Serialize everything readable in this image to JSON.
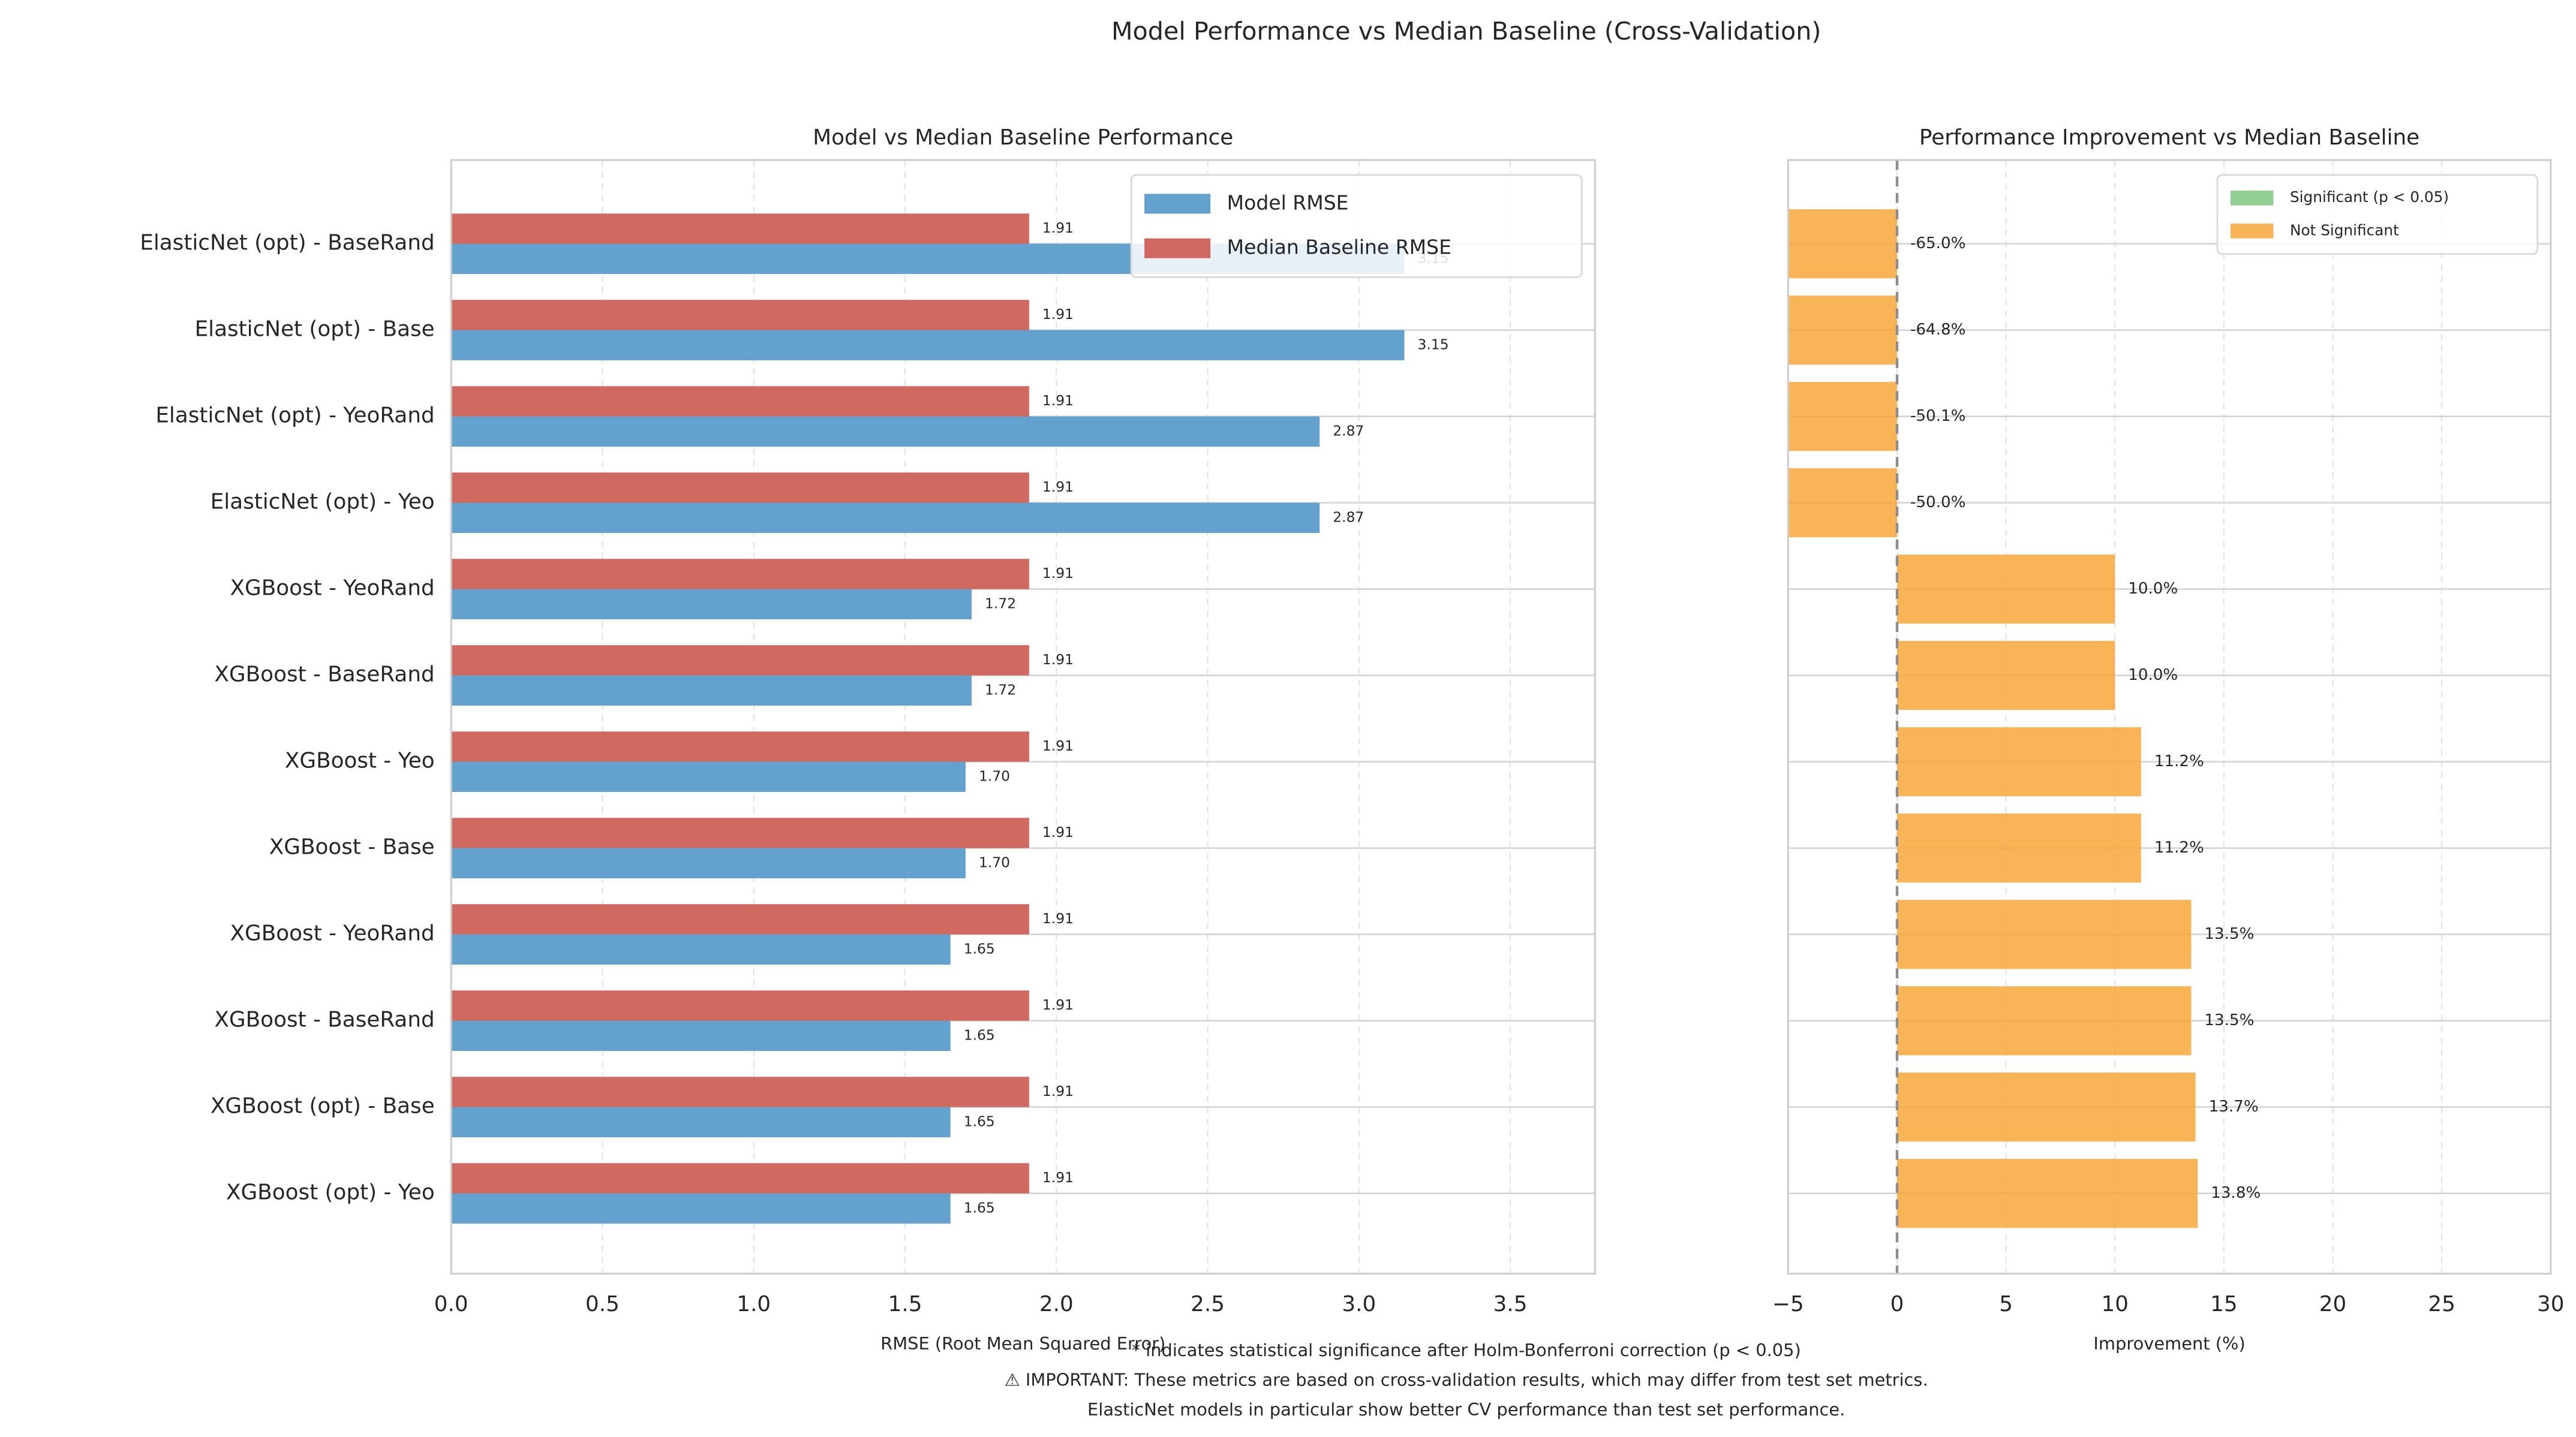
{
  "title": "Model Performance vs Median Baseline (Cross-Validation)",
  "footnotes": [
    "* indicates statistical significance after Holm-Bonferroni correction (p < 0.05)",
    "⚠ IMPORTANT: These metrics are based on cross-validation results, which may differ from test set metrics.",
    "ElasticNet models in particular show better CV performance than test set performance."
  ],
  "chart_data": [
    {
      "type": "barh",
      "title": "Model vs Median Baseline Performance",
      "xlabel": "RMSE (Root Mean Squared Error)",
      "categories": [
        "ElasticNet (opt) - BaseRand",
        "ElasticNet (opt) - Base",
        "ElasticNet (opt) - YeoRand",
        "ElasticNet (opt) - Yeo",
        "XGBoost - YeoRand",
        "XGBoost - BaseRand",
        "XGBoost - Yeo",
        "XGBoost - Base",
        "XGBoost - YeoRand",
        "XGBoost - BaseRand",
        "XGBoost (opt) - Base",
        "XGBoost (opt) - Yeo"
      ],
      "series": [
        {
          "name": "Model RMSE",
          "color": "#5b9ccb",
          "values": [
            3.15,
            3.15,
            2.87,
            2.87,
            1.72,
            1.72,
            1.7,
            1.7,
            1.65,
            1.65,
            1.65,
            1.65
          ],
          "value_labels": [
            "3.15",
            "3.15",
            "2.87",
            "2.87",
            "1.72",
            "1.72",
            "1.70",
            "1.70",
            "1.65",
            "1.65",
            "1.65",
            "1.65"
          ]
        },
        {
          "name": "Median Baseline RMSE",
          "color": "#cd6157",
          "values": [
            1.91,
            1.91,
            1.91,
            1.91,
            1.91,
            1.91,
            1.91,
            1.91,
            1.91,
            1.91,
            1.91,
            1.91
          ],
          "value_labels": [
            "1.91",
            "1.91",
            "1.91",
            "1.91",
            "1.91",
            "1.91",
            "1.91",
            "1.91",
            "1.91",
            "1.91",
            "1.91",
            "1.91"
          ]
        }
      ],
      "xlim": [
        0,
        3.78
      ],
      "xticks": [
        {
          "value": 0,
          "label": "0.0"
        },
        {
          "value": 0.5,
          "label": "0.5"
        },
        {
          "value": 1,
          "label": "1.0"
        },
        {
          "value": 1.5,
          "label": "1.5"
        },
        {
          "value": 2,
          "label": "2.0"
        },
        {
          "value": 2.5,
          "label": "2.5"
        },
        {
          "value": 3,
          "label": "3.0"
        },
        {
          "value": 3.5,
          "label": "3.5"
        }
      ],
      "grid": true,
      "legend": "upper right"
    },
    {
      "type": "barh",
      "title": "Performance Improvement vs Median Baseline",
      "xlabel": "Improvement (%)",
      "series": [
        {
          "name": "Significant (p < 0.05)",
          "color": "#7bc67b",
          "values": [
            null,
            null,
            null,
            null,
            null,
            null,
            null,
            null,
            null,
            null,
            null,
            null
          ]
        },
        {
          "name": "Not Significant",
          "color": "#f9a433",
          "values": [
            -65.0,
            -64.8,
            -50.1,
            -50.0,
            10.0,
            10.0,
            11.2,
            11.2,
            13.5,
            13.5,
            13.7,
            13.8
          ],
          "value_labels": [
            "-65.0%",
            "-64.8%",
            "-50.1%",
            "-50.0%",
            "10.0%",
            "10.0%",
            "11.2%",
            "11.2%",
            "13.5%",
            "13.5%",
            "13.7%",
            "13.8%"
          ]
        }
      ],
      "xlim": [
        -5,
        30
      ],
      "xticks": [
        {
          "value": -5,
          "label": "−5"
        },
        0,
        5,
        10,
        15,
        20,
        25,
        30
      ],
      "reference_line": 0,
      "grid": true,
      "legend": "upper right"
    }
  ]
}
